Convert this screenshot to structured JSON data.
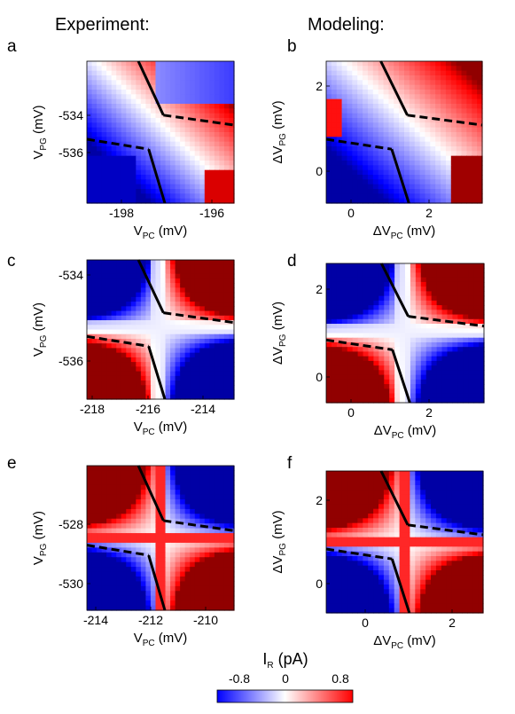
{
  "column_titles": {
    "experiment": "Experiment:",
    "modeling": "Modeling:"
  },
  "colorbar": {
    "label_main": "I",
    "label_sub": "R",
    "label_unit": " (pA)",
    "ticks": [
      "-0.8",
      "0",
      "0.8"
    ],
    "colors": {
      "negative": "#0000ff",
      "zero": "#ffffff",
      "positive": "#ff0000"
    }
  },
  "chart_data": [
    {
      "type": "heatmap",
      "id": "a",
      "label": "a",
      "xlabel_main": "V",
      "xlabel_sub": "PC",
      "xlabel_unit": " (mV)",
      "ylabel_main": "V",
      "ylabel_sub": "PG",
      "ylabel_unit": " (mV)",
      "xticks": [
        "-198",
        "-196"
      ],
      "yticks": [
        "-534",
        "-536"
      ],
      "style": "experiment-weak"
    },
    {
      "type": "heatmap",
      "id": "b",
      "label": "b",
      "xlabel_main": "ΔV",
      "xlabel_sub": "PC",
      "xlabel_unit": " (mV)",
      "ylabel_main": "ΔV",
      "ylabel_sub": "PG",
      "ylabel_unit": " (mV)",
      "xticks": [
        "0",
        "2"
      ],
      "yticks": [
        "2",
        "0"
      ],
      "style": "model-weak"
    },
    {
      "type": "heatmap",
      "id": "c",
      "label": "c",
      "xlabel_main": "V",
      "xlabel_sub": "PC",
      "xlabel_unit": " (mV)",
      "ylabel_main": "V",
      "ylabel_sub": "PG",
      "ylabel_unit": " (mV)",
      "xticks": [
        "-218",
        "-216",
        "-214"
      ],
      "yticks": [
        "-534",
        "-536"
      ],
      "style": "experiment-strong"
    },
    {
      "type": "heatmap",
      "id": "d",
      "label": "d",
      "xlabel_main": "ΔV",
      "xlabel_sub": "PC",
      "xlabel_unit": " (mV)",
      "ylabel_main": "ΔV",
      "ylabel_sub": "PG",
      "ylabel_unit": " (mV)",
      "xticks": [
        "0",
        "2"
      ],
      "yticks": [
        "2",
        "0"
      ],
      "style": "model-strong"
    },
    {
      "type": "heatmap",
      "id": "e",
      "label": "e",
      "xlabel_main": "V",
      "xlabel_sub": "PC",
      "xlabel_unit": " (mV)",
      "ylabel_main": "V",
      "ylabel_sub": "PG",
      "ylabel_unit": " (mV)",
      "xticks": [
        "-214",
        "-212",
        "-210"
      ],
      "yticks": [
        "-528",
        "-530"
      ],
      "style": "experiment-inverted"
    },
    {
      "type": "heatmap",
      "id": "f",
      "label": "f",
      "xlabel_main": "ΔV",
      "xlabel_sub": "PC",
      "xlabel_unit": " (mV)",
      "ylabel_main": "ΔV",
      "ylabel_sub": "PG",
      "ylabel_unit": " (mV)",
      "xticks": [
        "0",
        "2"
      ],
      "yticks": [
        "2",
        "0"
      ],
      "style": "model-inverted"
    }
  ]
}
